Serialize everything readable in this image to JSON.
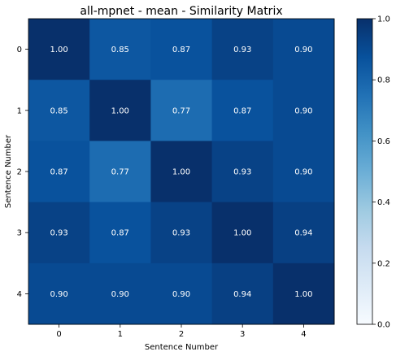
{
  "chart_data": {
    "type": "heatmap",
    "title": "all-mpnet - mean - Similarity Matrix",
    "xlabel": "Sentence Number",
    "ylabel": "Sentence Number",
    "x_ticks": [
      "0",
      "1",
      "2",
      "3",
      "4"
    ],
    "y_ticks": [
      "0",
      "1",
      "2",
      "3",
      "4"
    ],
    "values": [
      [
        1.0,
        0.85,
        0.87,
        0.93,
        0.9
      ],
      [
        0.85,
        1.0,
        0.77,
        0.87,
        0.9
      ],
      [
        0.87,
        0.77,
        1.0,
        0.93,
        0.9
      ],
      [
        0.93,
        0.87,
        0.93,
        1.0,
        0.94
      ],
      [
        0.9,
        0.9,
        0.9,
        0.94,
        1.0
      ]
    ],
    "cell_labels": [
      [
        "1.00",
        "0.85",
        "0.87",
        "0.93",
        "0.90"
      ],
      [
        "0.85",
        "1.00",
        "0.77",
        "0.87",
        "0.90"
      ],
      [
        "0.87",
        "0.77",
        "1.00",
        "0.93",
        "0.90"
      ],
      [
        "0.93",
        "0.87",
        "0.93",
        "1.00",
        "0.94"
      ],
      [
        "0.90",
        "0.90",
        "0.90",
        "0.94",
        "1.00"
      ]
    ],
    "colormap": "Blues",
    "vlim": [
      0.0,
      1.0
    ],
    "colorbar_ticks": [
      "0.0",
      "0.2",
      "0.4",
      "0.6",
      "0.8",
      "1.0"
    ],
    "colorbar_position": "right",
    "grid": false
  }
}
